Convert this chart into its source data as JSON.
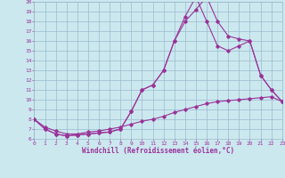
{
  "bg_color": "#cce8ef",
  "grid_color": "#99bbcc",
  "line_color": "#993399",
  "xlabel": "Windchill (Refroidissement éolien,°C)",
  "xlim": [
    0,
    23
  ],
  "ylim": [
    6,
    20
  ],
  "yticks": [
    6,
    7,
    8,
    9,
    10,
    11,
    12,
    13,
    14,
    15,
    16,
    17,
    18,
    19,
    20
  ],
  "xticks": [
    0,
    1,
    2,
    3,
    4,
    5,
    6,
    7,
    8,
    9,
    10,
    11,
    12,
    13,
    14,
    15,
    16,
    17,
    18,
    19,
    20,
    21,
    22,
    23
  ],
  "line1_x": [
    0,
    1,
    2,
    3,
    4,
    5,
    6,
    7,
    8,
    9,
    10,
    11,
    12,
    13,
    14,
    15,
    16,
    17,
    18,
    19,
    20,
    21,
    22,
    23
  ],
  "line1_y": [
    8.0,
    7.0,
    6.5,
    6.3,
    6.4,
    6.5,
    6.6,
    6.7,
    7.0,
    8.8,
    11.0,
    11.5,
    13.0,
    16.0,
    18.0,
    19.2,
    20.5,
    18.0,
    16.5,
    16.2,
    16.0,
    12.5,
    11.0,
    9.8
  ],
  "line2_x": [
    0,
    1,
    2,
    3,
    4,
    5,
    6,
    7,
    8,
    9,
    10,
    11,
    12,
    13,
    14,
    15,
    16,
    17,
    18,
    19,
    20,
    21,
    22,
    23
  ],
  "line2_y": [
    8.0,
    7.0,
    6.5,
    6.3,
    6.4,
    6.5,
    6.6,
    6.7,
    7.0,
    8.8,
    11.0,
    11.5,
    13.0,
    16.0,
    18.5,
    20.5,
    18.0,
    15.5,
    15.0,
    15.5,
    16.0,
    12.5,
    11.0,
    9.8
  ],
  "line3_x": [
    0,
    1,
    2,
    3,
    4,
    5,
    6,
    7,
    8,
    9,
    10,
    11,
    12,
    13,
    14,
    15,
    16,
    17,
    18,
    19,
    20,
    21,
    22,
    23
  ],
  "line3_y": [
    8.0,
    7.2,
    6.8,
    6.5,
    6.5,
    6.7,
    6.8,
    7.0,
    7.2,
    7.5,
    7.8,
    8.0,
    8.3,
    8.7,
    9.0,
    9.3,
    9.6,
    9.8,
    9.9,
    10.0,
    10.1,
    10.2,
    10.3,
    9.8
  ],
  "tick_fontsize": 4.5,
  "xlabel_fontsize": 5.5
}
